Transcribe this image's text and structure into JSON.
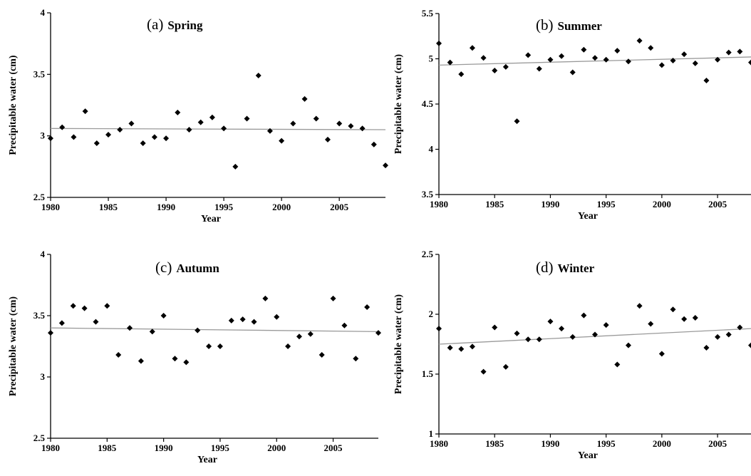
{
  "chart_data": [
    {
      "type": "scatter",
      "panel_letter": "(a)",
      "panel_title": "Spring",
      "xlabel": "Year",
      "ylabel": "Precipitable water (cm)",
      "xlim": [
        1980,
        2009
      ],
      "ylim": [
        2.5,
        4
      ],
      "xticks": [
        1980,
        1985,
        1990,
        1995,
        2000,
        2005
      ],
      "yticks": [
        2.5,
        3,
        3.5,
        4
      ],
      "x": [
        1980,
        1981,
        1982,
        1983,
        1984,
        1985,
        1986,
        1987,
        1988,
        1989,
        1990,
        1991,
        1992,
        1993,
        1994,
        1995,
        1996,
        1997,
        1998,
        1999,
        2000,
        2001,
        2002,
        2003,
        2004,
        2005,
        2006,
        2007,
        2008,
        2009
      ],
      "y": [
        2.98,
        3.07,
        2.99,
        3.2,
        2.94,
        3.01,
        3.05,
        3.1,
        2.94,
        2.99,
        2.98,
        3.19,
        3.05,
        3.11,
        3.15,
        3.06,
        2.75,
        3.14,
        3.49,
        3.04,
        2.96,
        3.1,
        3.3,
        3.14,
        2.97,
        3.1,
        3.08,
        3.06,
        2.93,
        2.76
      ],
      "trend": [
        [
          1980,
          3.06
        ],
        [
          2009,
          3.05
        ]
      ]
    },
    {
      "type": "scatter",
      "panel_letter": "(b)",
      "panel_title": "Summer",
      "xlabel": "Year",
      "ylabel": "Precipitable water (cm)",
      "xlim": [
        1980,
        2008
      ],
      "ylim": [
        3.5,
        5.5
      ],
      "xticks": [
        1980,
        1985,
        1990,
        1995,
        2000,
        2005
      ],
      "yticks": [
        3.5,
        4,
        4.5,
        5,
        5.5
      ],
      "x": [
        1980,
        1981,
        1982,
        1983,
        1984,
        1985,
        1986,
        1987,
        1988,
        1989,
        1990,
        1991,
        1992,
        1993,
        1994,
        1995,
        1996,
        1997,
        1998,
        1999,
        2000,
        2001,
        2002,
        2003,
        2004,
        2005,
        2006,
        2007,
        2008
      ],
      "y": [
        5.17,
        4.96,
        4.83,
        5.12,
        5.01,
        4.87,
        4.91,
        4.31,
        5.04,
        4.89,
        4.99,
        5.03,
        4.85,
        5.1,
        5.01,
        4.99,
        5.09,
        4.97,
        5.2,
        5.12,
        4.93,
        4.98,
        5.05,
        4.95,
        4.76,
        4.99,
        5.07,
        5.08,
        4.96
      ],
      "trend": [
        [
          1980,
          4.93
        ],
        [
          2008,
          5.02
        ]
      ]
    },
    {
      "type": "scatter",
      "panel_letter": "(c)",
      "panel_title": "Autumn",
      "xlabel": "Year",
      "ylabel": "Precipitable water (cm)",
      "xlim": [
        1980,
        2009
      ],
      "ylim": [
        2.5,
        4
      ],
      "xticks": [
        1980,
        1985,
        1990,
        1995,
        2000,
        2005
      ],
      "yticks": [
        2.5,
        3,
        3.5,
        4
      ],
      "x": [
        1980,
        1981,
        1982,
        1983,
        1984,
        1985,
        1986,
        1987,
        1988,
        1989,
        1990,
        1991,
        1992,
        1993,
        1994,
        1995,
        1996,
        1997,
        1998,
        1999,
        2000,
        2001,
        2002,
        2003,
        2004,
        2005,
        2006,
        2007,
        2008,
        2009
      ],
      "y": [
        3.36,
        3.44,
        3.58,
        3.56,
        3.45,
        3.58,
        3.18,
        3.4,
        3.13,
        3.37,
        3.5,
        3.15,
        3.12,
        3.38,
        3.25,
        3.25,
        3.46,
        3.47,
        3.45,
        3.64,
        3.49,
        3.25,
        3.33,
        3.35,
        3.18,
        3.64,
        3.42,
        3.15,
        3.57,
        3.36
      ],
      "trend": [
        [
          1980,
          3.4
        ],
        [
          2009,
          3.37
        ]
      ]
    },
    {
      "type": "scatter",
      "panel_letter": "(d)",
      "panel_title": "Winter",
      "xlabel": "Year",
      "ylabel": "Precipitable water (cm)",
      "xlim": [
        1980,
        2008
      ],
      "ylim": [
        1,
        2.5
      ],
      "xticks": [
        1980,
        1985,
        1990,
        1995,
        2000,
        2005
      ],
      "yticks": [
        1,
        1.5,
        2,
        2.5
      ],
      "x": [
        1980,
        1981,
        1982,
        1983,
        1984,
        1985,
        1986,
        1987,
        1988,
        1989,
        1990,
        1991,
        1992,
        1993,
        1994,
        1995,
        1996,
        1997,
        1998,
        1999,
        2000,
        2001,
        2002,
        2003,
        2004,
        2005,
        2006,
        2007,
        2008
      ],
      "y": [
        1.88,
        1.72,
        1.71,
        1.73,
        1.52,
        1.89,
        1.56,
        1.84,
        1.79,
        1.79,
        1.94,
        1.88,
        1.81,
        1.99,
        1.83,
        1.91,
        1.58,
        1.74,
        2.07,
        1.92,
        1.67,
        2.04,
        1.96,
        1.97,
        1.72,
        1.81,
        1.83,
        1.89,
        1.74
      ],
      "trend": [
        [
          1980,
          1.75
        ],
        [
          2008,
          1.88
        ]
      ]
    }
  ]
}
